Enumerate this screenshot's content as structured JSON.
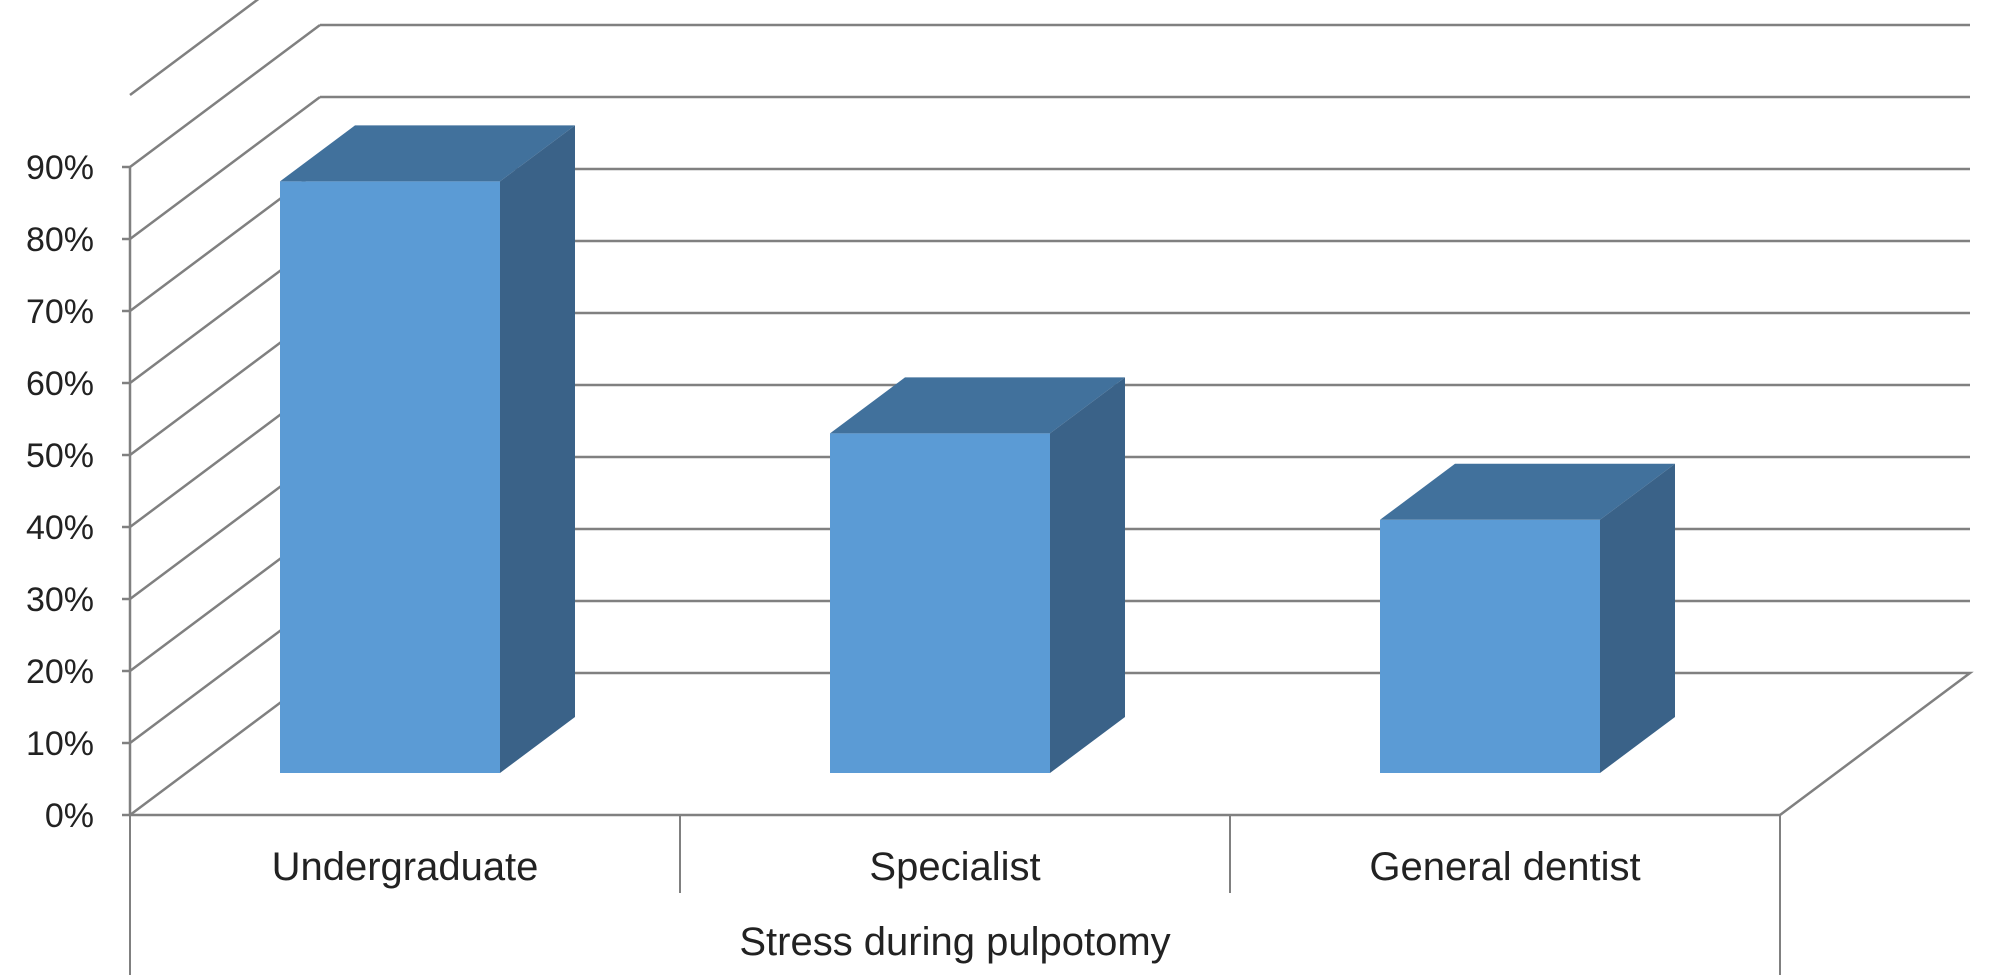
{
  "chart_data": {
    "type": "bar",
    "style": "3d-clustered-column",
    "title": "",
    "xlabel": "Stress during pulpotomy",
    "ylabel": "",
    "categories": [
      "Undergraduate",
      "Specialist",
      "General dentist"
    ],
    "values": [
      88,
      53,
      41
    ],
    "ylim": [
      0,
      90
    ],
    "yticks": [
      "0%",
      "10%",
      "20%",
      "30%",
      "40%",
      "50%",
      "60%",
      "70%",
      "80%",
      "90%"
    ],
    "grid": true,
    "legend": "none",
    "colors": {
      "bar_front": "#5b9bd5",
      "bar_top": "#41719c",
      "bar_side": "#3a6288",
      "grid": "#808080",
      "axis": "#808080",
      "text": "#222222"
    }
  }
}
